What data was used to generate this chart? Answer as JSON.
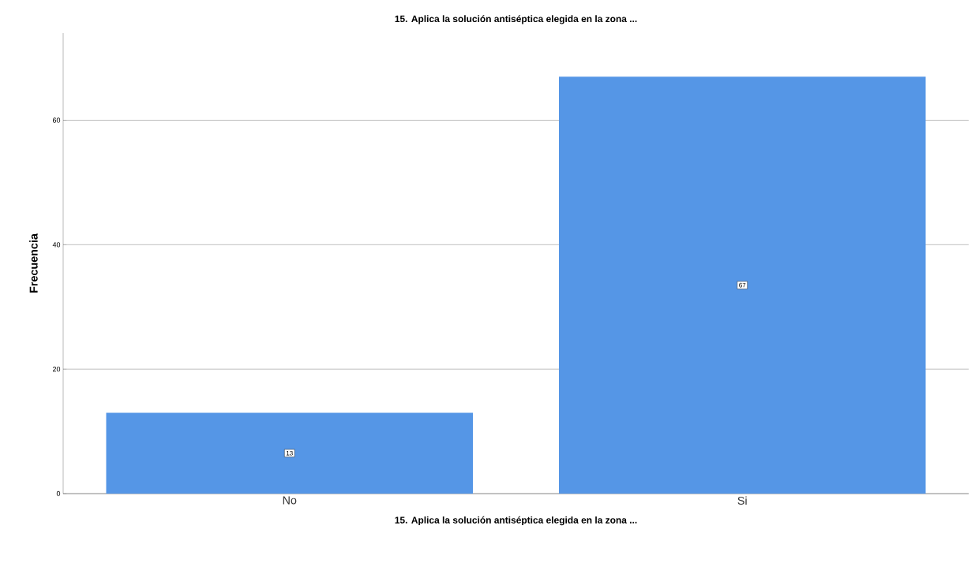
{
  "chart_data": {
    "type": "bar",
    "title": "15.  Aplica la solución antiséptica elegida en la zona ...",
    "xlabel": "15.  Aplica la solución antiséptica elegida en la zona ...",
    "ylabel": "Frecuencia",
    "categories": [
      "No",
      "Si"
    ],
    "values": [
      13,
      67
    ],
    "color": "#5596e6",
    "ylim": [
      0,
      74
    ],
    "yticks": [
      0,
      20,
      40,
      60
    ],
    "grid": "y",
    "data_labels": true
  }
}
